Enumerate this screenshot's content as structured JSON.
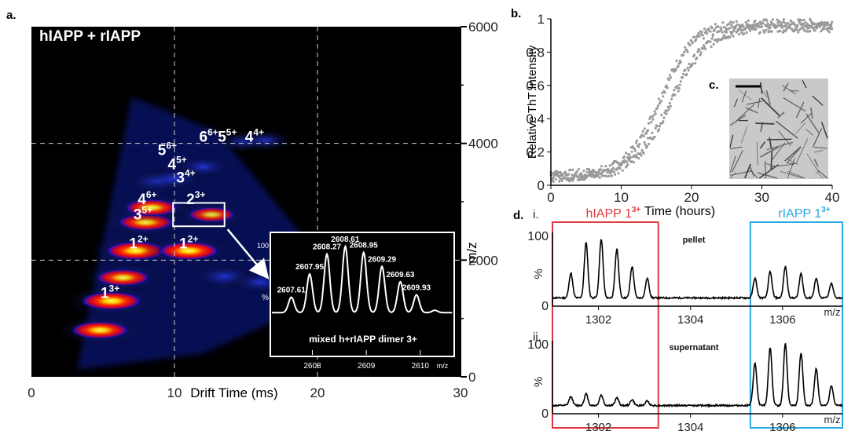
{
  "panel_letters": {
    "a": "a.",
    "b": "b.",
    "c": "c.",
    "d": "d."
  },
  "colors": {
    "heat_hot": "#ffff00",
    "heat_mid": "#ff3b00",
    "heat_low": "#0000c8",
    "hiapp_box": "#e0393d",
    "riapp_box": "#27a9e1",
    "scatter": "#9a9a9a"
  },
  "chart_data": [
    {
      "id": "a",
      "type": "heatmap",
      "title": "hIAPP + rIAPP",
      "xlabel": "Drift Time (ms)",
      "ylabel": "m/z",
      "xlim": [
        0,
        30
      ],
      "ylim": [
        0,
        6000
      ],
      "xticks": [
        "0",
        "10",
        "20",
        "30"
      ],
      "yticks": [
        "0",
        "2000",
        "4000",
        "6000"
      ],
      "grid": true,
      "blobs": [
        {
          "x": 4.8,
          "y": 800,
          "i": 0.9
        },
        {
          "x": 5.6,
          "y": 1300,
          "i": 1.0
        },
        {
          "x": 6.4,
          "y": 1700,
          "i": 0.8
        },
        {
          "x": 7.3,
          "y": 2160,
          "i": 1.0
        },
        {
          "x": 11.0,
          "y": 2160,
          "i": 1.0
        },
        {
          "x": 8.0,
          "y": 2650,
          "i": 0.85
        },
        {
          "x": 8.4,
          "y": 2900,
          "i": 0.8
        },
        {
          "x": 12.6,
          "y": 2780,
          "i": 0.6
        },
        {
          "x": 8.8,
          "y": 3350,
          "i": 0.35
        },
        {
          "x": 10.0,
          "y": 3400,
          "i": 0.3
        },
        {
          "x": 12.0,
          "y": 3600,
          "i": 0.25
        },
        {
          "x": 14.8,
          "y": 4030,
          "i": 0.25
        },
        {
          "x": 16.4,
          "y": 4050,
          "i": 0.25
        },
        {
          "x": 13.5,
          "y": 1720,
          "i": 0.4
        },
        {
          "x": 16.0,
          "y": 1620,
          "i": 0.3
        }
      ],
      "charge_labels": [
        {
          "base": "1",
          "sup": "3+",
          "x": 5.5,
          "y": 1350
        },
        {
          "base": "1",
          "sup": "2+",
          "x": 7.5,
          "y": 2200
        },
        {
          "base": "1",
          "sup": "2+",
          "x": 11.0,
          "y": 2200
        },
        {
          "base": "3",
          "sup": "5+",
          "x": 7.8,
          "y": 2700
        },
        {
          "base": "4",
          "sup": "6+",
          "x": 8.1,
          "y": 2960
        },
        {
          "base": "2",
          "sup": "3+",
          "x": 11.5,
          "y": 2960
        },
        {
          "base": "3",
          "sup": "4+",
          "x": 10.8,
          "y": 3330
        },
        {
          "base": "4",
          "sup": "5+",
          "x": 10.2,
          "y": 3560
        },
        {
          "base": "5",
          "sup": "6+",
          "x": 9.5,
          "y": 3800
        },
        {
          "base": "6",
          "sup": "6+",
          "x": 12.4,
          "y": 4030
        },
        {
          "base": "5",
          "sup": "5+",
          "x": 13.7,
          "y": 4030
        },
        {
          "base": "4",
          "sup": "4+",
          "x": 15.6,
          "y": 4030
        }
      ],
      "highlight_box": {
        "x0": 9.9,
        "x1": 13.5,
        "y0": 2580,
        "y1": 2980
      },
      "inset": {
        "type": "line",
        "caption": "mixed h+rIAPP dimer 3+",
        "ylabel": "%",
        "xlabel": "m/z",
        "xlim": [
          2607.25,
          2610.6
        ],
        "ylim": [
          0,
          110
        ],
        "xticks": [
          "2608",
          "2609",
          "2610"
        ],
        "ytick": "100",
        "peaks": [
          {
            "x": 2607.61,
            "y": 32,
            "label": "2607.61"
          },
          {
            "x": 2607.95,
            "y": 62,
            "label": "2607.95"
          },
          {
            "x": 2608.27,
            "y": 88,
            "label": "2608.27"
          },
          {
            "x": 2608.61,
            "y": 98,
            "label": "2608.61"
          },
          {
            "x": 2608.95,
            "y": 90,
            "label": "2608.95"
          },
          {
            "x": 2609.29,
            "y": 72,
            "label": "2609.29"
          },
          {
            "x": 2609.63,
            "y": 52,
            "label": "2609.63"
          },
          {
            "x": 2609.93,
            "y": 35,
            "label": "2609.93"
          },
          {
            "x": 2610.27,
            "y": 15,
            "label": ""
          }
        ]
      }
    },
    {
      "id": "b",
      "type": "scatter",
      "xlabel": "Time (hours)",
      "ylabel": "Relative ThT Intensity",
      "xlim": [
        0,
        40
      ],
      "ylim": [
        0,
        1
      ],
      "xticks": [
        "0",
        "10",
        "20",
        "30",
        "40"
      ],
      "yticks": [
        "0",
        "0.2",
        "0.4",
        "0.6",
        "0.8",
        "1"
      ],
      "series": [
        {
          "x_start": 0,
          "x_end": 40,
          "midpoint": 15.5,
          "rate": 0.42,
          "baseline": 0.06,
          "plateau": 0.97
        },
        {
          "x_start": 0,
          "x_end": 40,
          "midpoint": 17.0,
          "rate": 0.38,
          "baseline": 0.05,
          "plateau": 0.95
        }
      ]
    },
    {
      "id": "d",
      "type": "line",
      "xlabel": "m/z",
      "xlim": [
        1301.0,
        1307.3
      ],
      "xticks": [
        "1302",
        "1304",
        "1306"
      ],
      "ylabel": "%",
      "box_labels": [
        {
          "base": "hIAPP 1",
          "sup": "3+",
          "color": "#e0393d",
          "x0": 1301.0,
          "x1": 1303.3
        },
        {
          "base": "rIAPP 1",
          "sup": "3+",
          "color": "#27a9e1",
          "x0": 1305.3,
          "x1": 1307.3
        }
      ],
      "spectra": [
        {
          "roman": "i.",
          "name": "pellet",
          "ytick": "100",
          "peaks": [
            {
              "x": 1301.4,
              "y": 38
            },
            {
              "x": 1301.73,
              "y": 85
            },
            {
              "x": 1302.06,
              "y": 90
            },
            {
              "x": 1302.4,
              "y": 75
            },
            {
              "x": 1302.73,
              "y": 48
            },
            {
              "x": 1303.06,
              "y": 30
            },
            {
              "x": 1305.4,
              "y": 30
            },
            {
              "x": 1305.73,
              "y": 40
            },
            {
              "x": 1306.06,
              "y": 48
            },
            {
              "x": 1306.4,
              "y": 37
            },
            {
              "x": 1306.73,
              "y": 30
            },
            {
              "x": 1307.06,
              "y": 22
            }
          ]
        },
        {
          "roman": "ii.",
          "name": "supernatant",
          "ytick": "100",
          "peaks": [
            {
              "x": 1301.4,
              "y": 14
            },
            {
              "x": 1301.73,
              "y": 18
            },
            {
              "x": 1302.06,
              "y": 16
            },
            {
              "x": 1302.4,
              "y": 12
            },
            {
              "x": 1302.73,
              "y": 9
            },
            {
              "x": 1303.06,
              "y": 7
            },
            {
              "x": 1305.4,
              "y": 65
            },
            {
              "x": 1305.73,
              "y": 90
            },
            {
              "x": 1306.06,
              "y": 96
            },
            {
              "x": 1306.4,
              "y": 82
            },
            {
              "x": 1306.73,
              "y": 57
            },
            {
              "x": 1307.06,
              "y": 30
            }
          ]
        }
      ]
    }
  ]
}
